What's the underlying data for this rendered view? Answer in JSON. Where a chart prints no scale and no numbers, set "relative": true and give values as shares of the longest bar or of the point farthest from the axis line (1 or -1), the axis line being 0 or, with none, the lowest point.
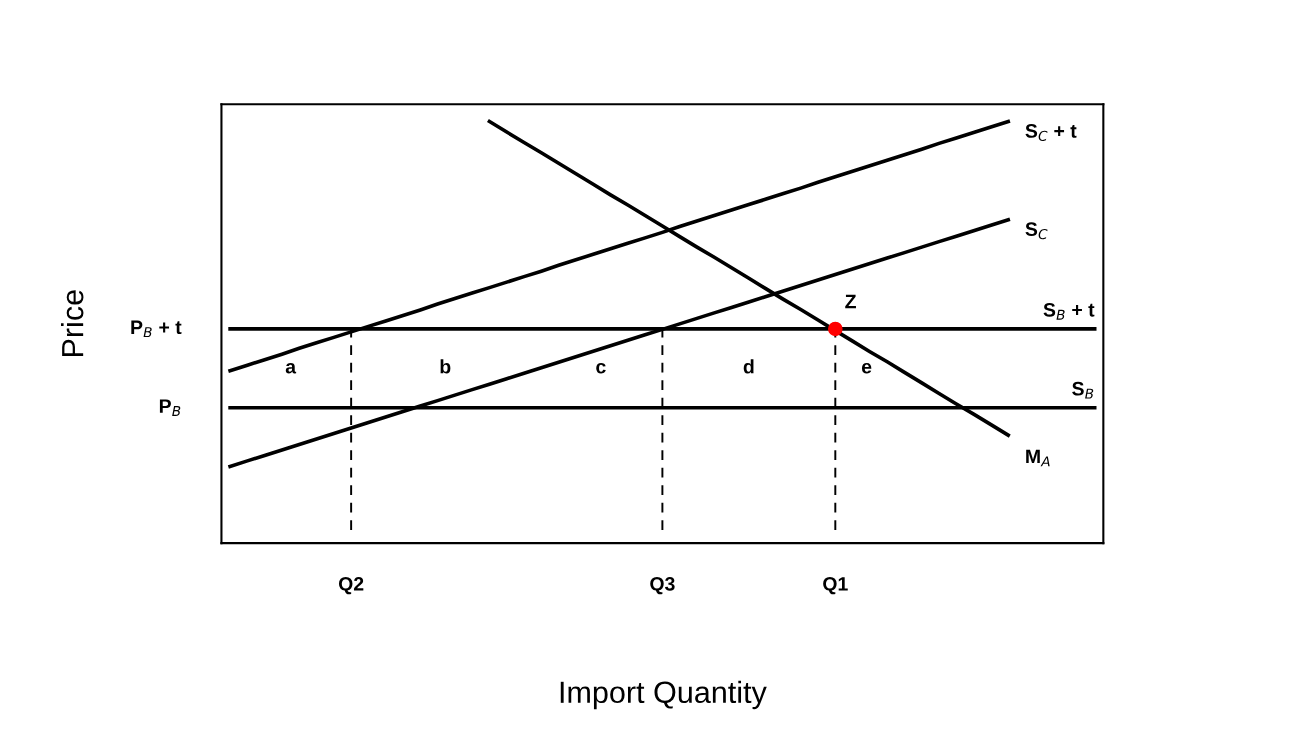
{
  "chart_data": {
    "type": "line",
    "relative": true,
    "xlabel": "Import Quantity",
    "ylabel": "Price",
    "marker": "none",
    "line_style": "solid",
    "categories": [
      null,
      null,
      null,
      null,
      null,
      null,
      null,
      "Q2",
      null,
      null,
      null,
      null,
      null,
      null,
      null,
      null,
      null,
      null,
      null,
      null,
      null,
      null,
      null,
      null,
      null,
      "Q3",
      null,
      null,
      null,
      null,
      null,
      null,
      null,
      null,
      null,
      "Q1",
      null,
      null,
      null,
      null,
      null,
      null,
      null,
      null,
      null,
      null,
      null,
      null,
      null,
      null,
      null
    ],
    "series": [
      {
        "name": "S$_{C}$ + t",
        "color": "#000000",
        "values": [
          0.409,
          0.422,
          0.435,
          0.448,
          0.462,
          0.475,
          0.488,
          0.501,
          0.514,
          0.527,
          0.54,
          0.553,
          0.567,
          0.58,
          0.593,
          0.606,
          0.619,
          0.632,
          0.645,
          0.659,
          0.672,
          0.685,
          0.698,
          0.711,
          0.724,
          0.737,
          0.751,
          0.764,
          0.777,
          0.79,
          0.803,
          0.816,
          0.829,
          0.842,
          0.856,
          0.869,
          0.882,
          0.895,
          0.908,
          0.921,
          0.934,
          0.948,
          0.961,
          0.974,
          0.987,
          1.0,
          null,
          null,
          null,
          null,
          null
        ]
      },
      {
        "name": "S$_{C}$",
        "color": "#000000",
        "values": [
          0.182,
          0.195,
          0.208,
          0.221,
          0.234,
          0.247,
          0.26,
          0.273,
          0.286,
          0.299,
          0.312,
          0.325,
          0.338,
          0.351,
          0.364,
          0.377,
          0.39,
          0.403,
          0.416,
          0.429,
          0.442,
          0.455,
          0.468,
          0.481,
          0.494,
          0.507,
          0.52,
          0.533,
          0.546,
          0.559,
          0.572,
          0.585,
          0.598,
          0.611,
          0.624,
          0.637,
          0.65,
          0.663,
          0.676,
          0.689,
          0.702,
          0.715,
          0.728,
          0.741,
          0.754,
          0.767,
          null,
          null,
          null,
          null,
          null
        ]
      },
      {
        "name": "S$_{B}$ + t",
        "color": "#000000",
        "values": [
          0.508,
          0.508,
          0.508,
          0.508,
          0.508,
          0.508,
          0.508,
          0.508,
          0.508,
          0.508,
          0.508,
          0.508,
          0.508,
          0.508,
          0.508,
          0.508,
          0.508,
          0.508,
          0.508,
          0.508,
          0.508,
          0.508,
          0.508,
          0.508,
          0.508,
          0.508,
          0.508,
          0.508,
          0.508,
          0.508,
          0.508,
          0.508,
          0.508,
          0.508,
          0.508,
          0.508,
          0.508,
          0.508,
          0.508,
          0.508,
          0.508,
          0.508,
          0.508,
          0.508,
          0.508,
          0.508,
          0.508,
          0.508,
          0.508,
          0.508,
          0.508
        ]
      },
      {
        "name": "S$_{B}$",
        "color": "#000000",
        "values": [
          0.321,
          0.321,
          0.321,
          0.321,
          0.321,
          0.321,
          0.321,
          0.321,
          0.321,
          0.321,
          0.321,
          0.321,
          0.321,
          0.321,
          0.321,
          0.321,
          0.321,
          0.321,
          0.321,
          0.321,
          0.321,
          0.321,
          0.321,
          0.321,
          0.321,
          0.321,
          0.321,
          0.321,
          0.321,
          0.321,
          0.321,
          0.321,
          0.321,
          0.321,
          0.321,
          0.321,
          0.321,
          0.321,
          0.321,
          0.321,
          0.321,
          0.321,
          0.321,
          0.321,
          0.321,
          0.321,
          0.321,
          0.321,
          0.321,
          0.321,
          0.321
        ]
      },
      {
        "name": "M$_{A}$",
        "color": "#000000",
        "values": [
          null,
          null,
          null,
          null,
          null,
          null,
          null,
          null,
          null,
          null,
          null,
          null,
          null,
          null,
          null,
          1.0,
          0.975,
          0.95,
          0.926,
          0.901,
          0.876,
          0.851,
          0.826,
          0.802,
          0.777,
          0.752,
          0.727,
          0.702,
          0.678,
          0.653,
          0.628,
          0.603,
          0.578,
          0.554,
          0.529,
          0.504,
          0.479,
          0.454,
          0.43,
          0.405,
          0.38,
          0.355,
          0.33,
          0.306,
          0.281,
          0.256,
          null,
          null,
          null,
          null,
          null
        ]
      },
      {
        "type": "scatter",
        "marker": "circle",
        "color": "#ff0000",
        "values": [
          null,
          null,
          null,
          null,
          null,
          null,
          null,
          null,
          null,
          null,
          null,
          null,
          null,
          null,
          null,
          null,
          null,
          null,
          null,
          null,
          null,
          null,
          null,
          null,
          null,
          null,
          null,
          null,
          null,
          null,
          null,
          null,
          null,
          null,
          null,
          0.508,
          null,
          null,
          null,
          null,
          null,
          null,
          null,
          null,
          null,
          null,
          null,
          null,
          null,
          null,
          null
        ]
      }
    ],
    "ref_lines": [
      {
        "axis": "x",
        "value": "Q2",
        "line_style": "dashed"
      },
      {
        "axis": "x",
        "value": "Q3",
        "line_style": "dashed"
      },
      {
        "axis": "x",
        "value": "Q1",
        "line_style": "dashed"
      }
    ],
    "annotations": [
      "P$_{B}$ + t",
      "P$_{B}$",
      "a",
      "b",
      "c",
      "d",
      "e",
      {
        "text": "Z",
        "x": "Q1",
        "y": 0.508
      }
    ]
  }
}
